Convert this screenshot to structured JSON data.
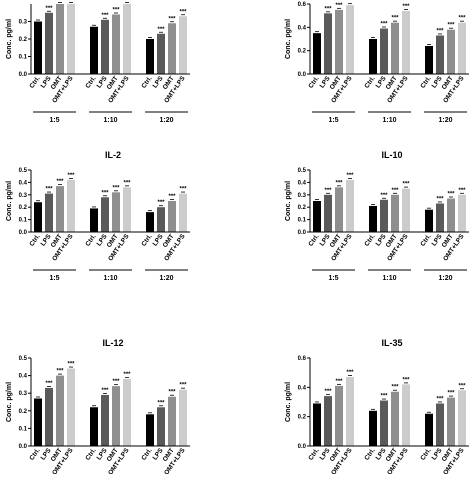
{
  "chart_data": [
    {
      "type": "bar",
      "title": "",
      "ylabel": "Conc. pg/ml",
      "ylim": [
        0,
        0.4
      ],
      "yticks": [
        "0.0",
        "0.1",
        "0.2",
        "0.3"
      ],
      "groups": [
        "1:5",
        "1:10",
        "1:20"
      ],
      "categories": [
        "Ctrl.",
        "LPS",
        "OMT",
        "OMT+LPS"
      ],
      "values": [
        [
          0.3,
          0.35,
          0.4,
          0.42
        ],
        [
          0.27,
          0.31,
          0.34,
          0.4
        ],
        [
          0.2,
          0.23,
          0.29,
          0.33
        ]
      ],
      "annotations": [
        "",
        "***",
        "***",
        "***"
      ]
    },
    {
      "type": "bar",
      "title": "",
      "ylabel": "Conc. pg/ml",
      "ylim": [
        0,
        0.6
      ],
      "yticks": [
        "0.0",
        "0.2",
        "0.4",
        "0.6"
      ],
      "groups": [
        "1:5",
        "1:10",
        "1:20"
      ],
      "categories": [
        "Ctrl.",
        "LPS",
        "OMT",
        "OMT+LPS"
      ],
      "values": [
        [
          0.35,
          0.52,
          0.55,
          0.59
        ],
        [
          0.3,
          0.39,
          0.44,
          0.54
        ],
        [
          0.24,
          0.33,
          0.38,
          0.44
        ]
      ],
      "annotations": [
        "",
        "***",
        "***",
        "***"
      ]
    },
    {
      "type": "bar",
      "title": "IL-2",
      "ylabel": "Conc. pg/ml",
      "ylim": [
        0,
        0.5
      ],
      "yticks": [
        "0.0",
        "0.1",
        "0.2",
        "0.3",
        "0.4",
        "0.5"
      ],
      "groups": [
        "1:5",
        "1:10",
        "1:20"
      ],
      "categories": [
        "Ctrl.",
        "LPS",
        "OMT",
        "OMT+LPS"
      ],
      "values": [
        [
          0.24,
          0.31,
          0.37,
          0.42
        ],
        [
          0.19,
          0.28,
          0.32,
          0.36
        ],
        [
          0.16,
          0.2,
          0.25,
          0.31
        ]
      ],
      "annotations": [
        "",
        "***",
        "***",
        "***"
      ]
    },
    {
      "type": "bar",
      "title": "IL-10",
      "ylabel": "Conc. pg/ml",
      "ylim": [
        0,
        0.5
      ],
      "yticks": [
        "0.0",
        "0.1",
        "0.2",
        "0.3",
        "0.4",
        "0.5"
      ],
      "groups": [
        "1:5",
        "1:10",
        "1:20"
      ],
      "categories": [
        "Ctrl.",
        "LPS",
        "OMT",
        "OMT+LPS"
      ],
      "values": [
        [
          0.25,
          0.3,
          0.36,
          0.42
        ],
        [
          0.21,
          0.26,
          0.3,
          0.35
        ],
        [
          0.18,
          0.23,
          0.27,
          0.3
        ]
      ],
      "annotations": [
        "",
        "***",
        "***",
        "***"
      ]
    },
    {
      "type": "bar",
      "title": "IL-12",
      "ylabel": "Conc. pg/ml",
      "ylim": [
        0,
        0.5
      ],
      "yticks": [
        "0.0",
        "0.1",
        "0.2",
        "0.3",
        "0.4",
        "0.5"
      ],
      "groups": [
        "1:5",
        "1:10",
        "1:20"
      ],
      "categories": [
        "Ctrl.",
        "LPS",
        "OMT",
        "OMT+LPS"
      ],
      "values": [
        [
          0.27,
          0.33,
          0.4,
          0.44
        ],
        [
          0.22,
          0.29,
          0.34,
          0.38
        ],
        [
          0.18,
          0.22,
          0.28,
          0.32
        ]
      ],
      "annotations": [
        "",
        "***",
        "***",
        "***"
      ]
    },
    {
      "type": "bar",
      "title": "IL-35",
      "ylabel": "Conc. pg/ml",
      "ylim": [
        0,
        0.6
      ],
      "yticks": [
        "0.0",
        "0.2",
        "0.4",
        "0.6"
      ],
      "groups": [
        "1:5",
        "1:10",
        "1:20"
      ],
      "categories": [
        "Ctrl.",
        "LPS",
        "OMT",
        "OMT+LPS"
      ],
      "values": [
        [
          0.29,
          0.34,
          0.41,
          0.47
        ],
        [
          0.24,
          0.31,
          0.37,
          0.42
        ],
        [
          0.22,
          0.29,
          0.33,
          0.38
        ]
      ],
      "annotations": [
        "",
        "***",
        "***",
        "***"
      ]
    }
  ],
  "colors": {
    "series": [
      "#000000",
      "#5a5a5a",
      "#8f8f8f",
      "#cccccc"
    ]
  }
}
